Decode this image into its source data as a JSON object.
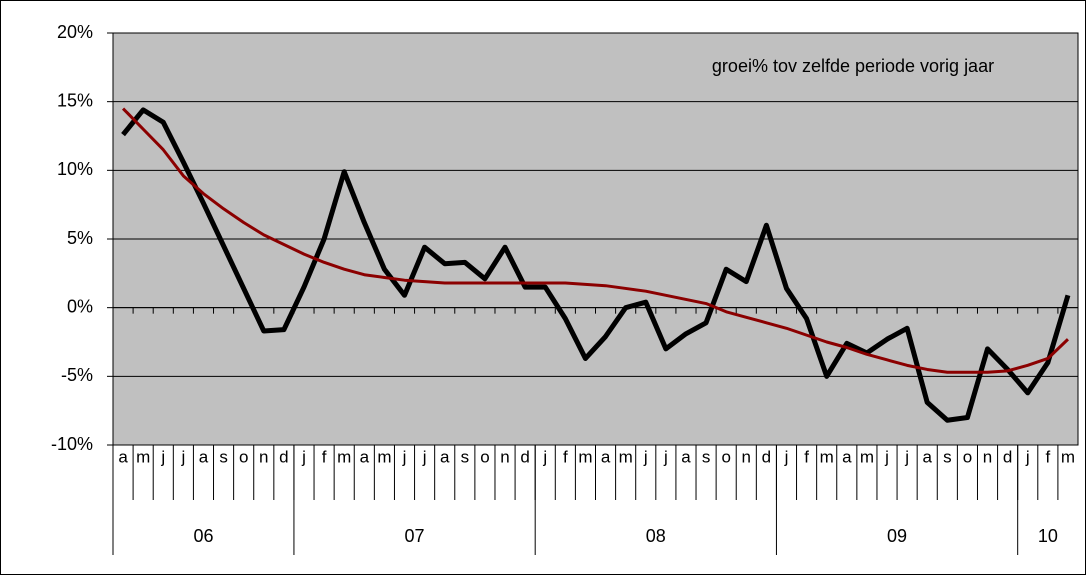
{
  "chart_data": {
    "type": "line",
    "annotation": "groei% tov zelfde periode vorig jaar",
    "category_groups": [
      {
        "label": "06",
        "categories": [
          "a",
          "m",
          "j",
          "j",
          "a",
          "s",
          "o",
          "n",
          "d"
        ]
      },
      {
        "label": "07",
        "categories": [
          "j",
          "f",
          "m",
          "a",
          "m",
          "j",
          "j",
          "a",
          "s",
          "o",
          "n",
          "d"
        ]
      },
      {
        "label": "08",
        "categories": [
          "j",
          "f",
          "m",
          "a",
          "m",
          "j",
          "j",
          "a",
          "s",
          "o",
          "n",
          "d"
        ]
      },
      {
        "label": "09",
        "categories": [
          "j",
          "f",
          "m",
          "a",
          "m",
          "j",
          "j",
          "a",
          "s",
          "o",
          "n",
          "d"
        ]
      },
      {
        "label": "10",
        "categories": [
          "j",
          "f",
          "m"
        ]
      }
    ],
    "series": [
      {
        "color": "#000000",
        "values": [
          12.6,
          14.4,
          13.5,
          10.6,
          7.6,
          4.5,
          1.4,
          -1.7,
          -1.6,
          1.5,
          5,
          9.9,
          6.2,
          2.8,
          0.9,
          4.4,
          3.2,
          3.3,
          2.1,
          4.4,
          1.5,
          1.5,
          -0.8,
          -3.7,
          -2.1,
          0,
          0.4,
          -3.0,
          -1.9,
          -1.1,
          2.8,
          1.9,
          6.0,
          1.4,
          -0.8,
          -5.0,
          -2.6,
          -3.3,
          -2.3,
          -1.5,
          -6.9,
          -8.2,
          -8.0,
          -3.0,
          -4.5,
          -6.2,
          -4.0,
          0.9
        ]
      },
      {
        "color": "#8b0000",
        "values": [
          14.5,
          13.0,
          11.5,
          9.6,
          8.3,
          7.2,
          6.2,
          5.3,
          4.6,
          3.9,
          3.3,
          2.8,
          2.4,
          2.2,
          2.0,
          1.9,
          1.8,
          1.8,
          1.8,
          1.8,
          1.8,
          1.8,
          1.8,
          1.7,
          1.6,
          1.4,
          1.2,
          0.9,
          0.6,
          0.3,
          -0.3,
          -0.7,
          -1.1,
          -1.5,
          -2.0,
          -2.5,
          -2.9,
          -3.4,
          -3.8,
          -4.2,
          -4.5,
          -4.7,
          -4.7,
          -4.7,
          -4.6,
          -4.2,
          -3.7,
          -2.3
        ]
      }
    ],
    "ylim": [
      -10,
      20
    ],
    "yticks": [
      {
        "value": -10,
        "label": "-10%"
      },
      {
        "value": -5,
        "label": "-5%"
      },
      {
        "value": 0,
        "label": "0%"
      },
      {
        "value": 5,
        "label": "5%"
      },
      {
        "value": 10,
        "label": "10%"
      },
      {
        "value": 15,
        "label": "15%"
      },
      {
        "value": 20,
        "label": "20%"
      }
    ],
    "grid": true,
    "background": "#c0c0c0"
  }
}
